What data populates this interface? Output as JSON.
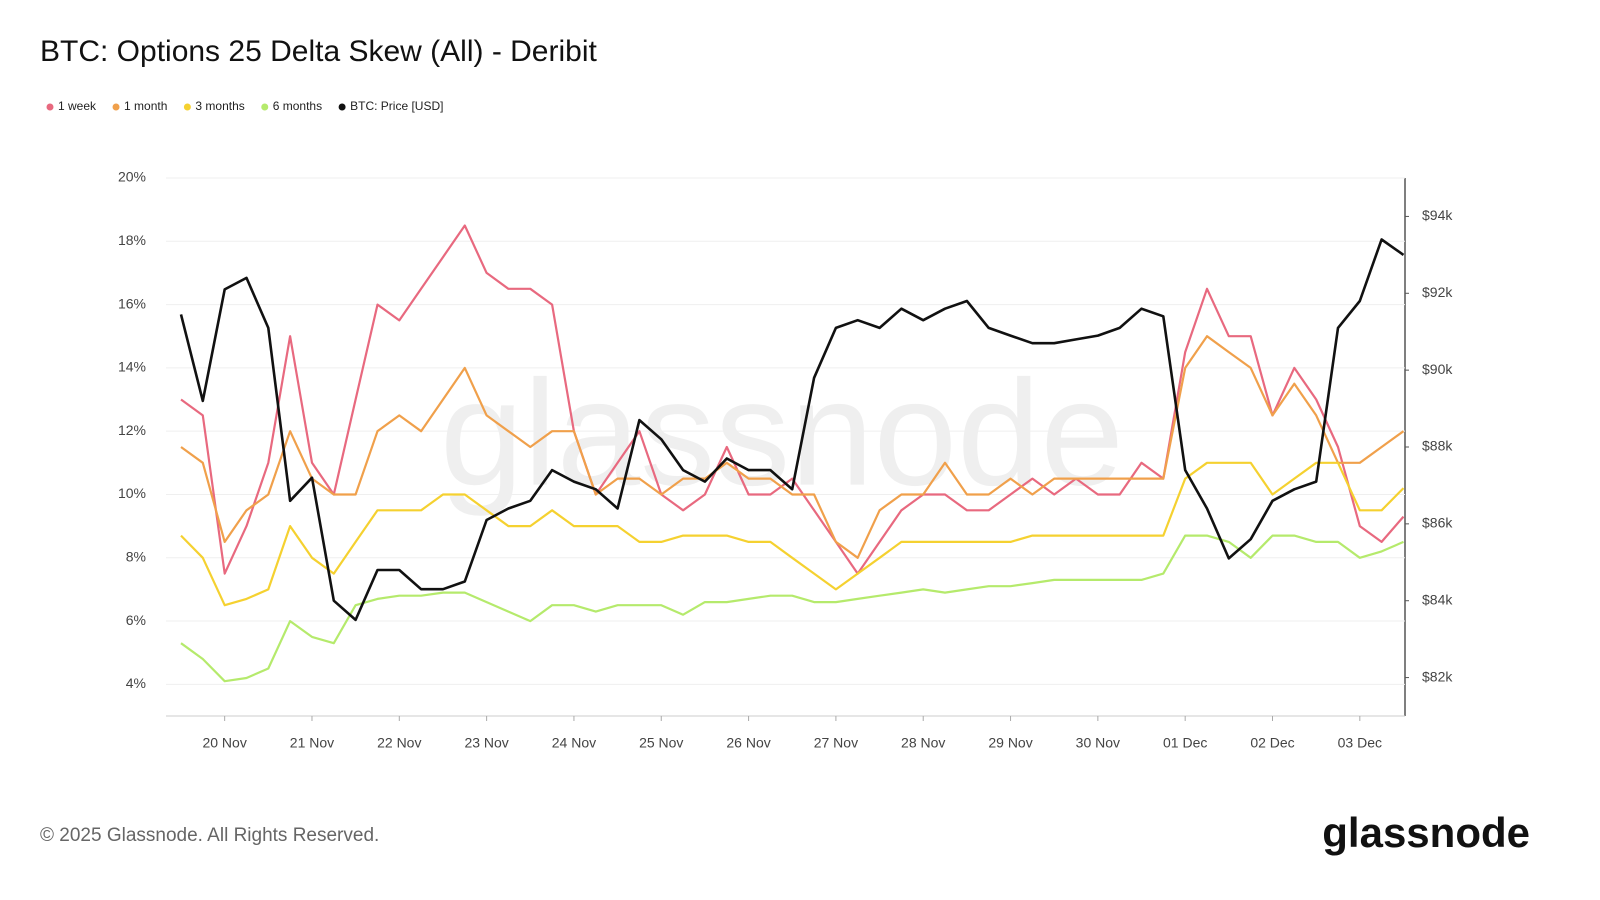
{
  "chart_data": {
    "type": "line",
    "title": "BTC: Options 25 Delta Skew (All) - Deribit",
    "categories": [
      null,
      null,
      "20 Nov",
      null,
      null,
      null,
      "21 Nov",
      null,
      null,
      null,
      "22 Nov",
      null,
      null,
      null,
      "23 Nov",
      null,
      null,
      null,
      "24 Nov",
      null,
      null,
      null,
      "25 Nov",
      null,
      null,
      null,
      "26 Nov",
      null,
      null,
      null,
      "27 Nov",
      null,
      null,
      null,
      "28 Nov",
      null,
      null,
      null,
      "29 Nov",
      null,
      null,
      null,
      "30 Nov",
      null,
      null,
      null,
      "01 Dec",
      null,
      null,
      null,
      "02 Dec",
      null,
      null,
      null,
      "03 Dec",
      null,
      null
    ],
    "series": [
      {
        "name": "1 week",
        "color": "#e8697f",
        "values": [
          13,
          12.5,
          7.5,
          9,
          11,
          15,
          11,
          10,
          13,
          16,
          15.5,
          16.5,
          17.5,
          18.5,
          17,
          16.5,
          16.5,
          16,
          12,
          10,
          11,
          12,
          10,
          9.5,
          10,
          11.5,
          10,
          10,
          10.5,
          9.5,
          8.5,
          7.5,
          8.5,
          9.5,
          10,
          10,
          9.5,
          9.5,
          10,
          10.5,
          10,
          10.5,
          10,
          10,
          11,
          10.5,
          14.5,
          16.5,
          15,
          15,
          12.5,
          14,
          13,
          11.5,
          9,
          8.5,
          9.3
        ]
      },
      {
        "name": "1 month",
        "color": "#f0a04b",
        "values": [
          11.5,
          11,
          8.5,
          9.5,
          10,
          12,
          10.5,
          10,
          10,
          12,
          12.5,
          12,
          13,
          14,
          12.5,
          12,
          11.5,
          12,
          12,
          10,
          10.5,
          10.5,
          10,
          10.5,
          10.5,
          11,
          10.5,
          10.5,
          10,
          10,
          8.5,
          8,
          9.5,
          10,
          10,
          11,
          10,
          10,
          10.5,
          10,
          10.5,
          10.5,
          10.5,
          10.5,
          10.5,
          10.5,
          14,
          15,
          14.5,
          14,
          12.5,
          13.5,
          12.5,
          11,
          11,
          11.5,
          12
        ]
      },
      {
        "name": "3 months",
        "color": "#f5d130",
        "values": [
          8.7,
          8,
          6.5,
          6.7,
          7,
          9,
          8,
          7.5,
          8.5,
          9.5,
          9.5,
          9.5,
          10,
          10,
          9.5,
          9,
          9,
          9.5,
          9,
          9,
          9,
          8.5,
          8.5,
          8.7,
          8.7,
          8.7,
          8.5,
          8.5,
          8,
          7.5,
          7,
          7.5,
          8,
          8.5,
          8.5,
          8.5,
          8.5,
          8.5,
          8.5,
          8.7,
          8.7,
          8.7,
          8.7,
          8.7,
          8.7,
          8.7,
          10.5,
          11,
          11,
          11,
          10,
          10.5,
          11,
          11,
          9.5,
          9.5,
          10.2
        ]
      },
      {
        "name": "6 months",
        "color": "#b5ea6c",
        "values": [
          5.3,
          4.8,
          4.1,
          4.2,
          4.5,
          6,
          5.5,
          5.3,
          6.5,
          6.7,
          6.8,
          6.8,
          6.9,
          6.9,
          6.6,
          6.3,
          6,
          6.5,
          6.5,
          6.3,
          6.5,
          6.5,
          6.5,
          6.2,
          6.6,
          6.6,
          6.7,
          6.8,
          6.8,
          6.6,
          6.6,
          6.7,
          6.8,
          6.9,
          7,
          6.9,
          7,
          7.1,
          7.1,
          7.2,
          7.3,
          7.3,
          7.3,
          7.3,
          7.3,
          7.5,
          8.7,
          8.7,
          8.5,
          8,
          8.7,
          8.7,
          8.5,
          8.5,
          8,
          8.2,
          8.5
        ]
      },
      {
        "name": "BTC: Price [USD]",
        "color": "#111111",
        "axis": "y2",
        "values": [
          91450,
          89200,
          92100,
          92400,
          91100,
          86600,
          87200,
          84000,
          83500,
          84800,
          84800,
          84300,
          84300,
          84500,
          86100,
          86400,
          86600,
          87400,
          87100,
          86900,
          86400,
          88700,
          88200,
          87400,
          87100,
          87700,
          87400,
          87400,
          86900,
          89800,
          91100,
          91300,
          91100,
          91600,
          91300,
          91600,
          91800,
          91100,
          90900,
          90700,
          90700,
          90800,
          90900,
          91100,
          91600,
          91400,
          87400,
          86400,
          85100,
          85600,
          86600,
          86900,
          87100,
          91100,
          91800,
          93400,
          93000
        ]
      }
    ],
    "ylim": [
      3,
      20
    ],
    "yticks": [
      {
        "value": 4,
        "label": "4%"
      },
      {
        "value": 6,
        "label": "6%"
      },
      {
        "value": 8,
        "label": "8%"
      },
      {
        "value": 10,
        "label": "10%"
      },
      {
        "value": 12,
        "label": "12%"
      },
      {
        "value": 14,
        "label": "14%"
      },
      {
        "value": 16,
        "label": "16%"
      },
      {
        "value": 18,
        "label": "18%"
      },
      {
        "value": 20,
        "label": "20%"
      }
    ],
    "y2lim": [
      81000,
      95000
    ],
    "y2ticks": [
      {
        "value": 82000,
        "label": "$82k"
      },
      {
        "value": 84000,
        "label": "$84k"
      },
      {
        "value": 86000,
        "label": "$86k"
      },
      {
        "value": 88000,
        "label": "$88k"
      },
      {
        "value": 90000,
        "label": "$90k"
      },
      {
        "value": 92000,
        "label": "$92k"
      },
      {
        "value": 94000,
        "label": "$94k"
      }
    ],
    "grid": true
  },
  "footer": {
    "copyright": "© 2025 Glassnode. All Rights Reserved.",
    "logo": "glassnode"
  }
}
